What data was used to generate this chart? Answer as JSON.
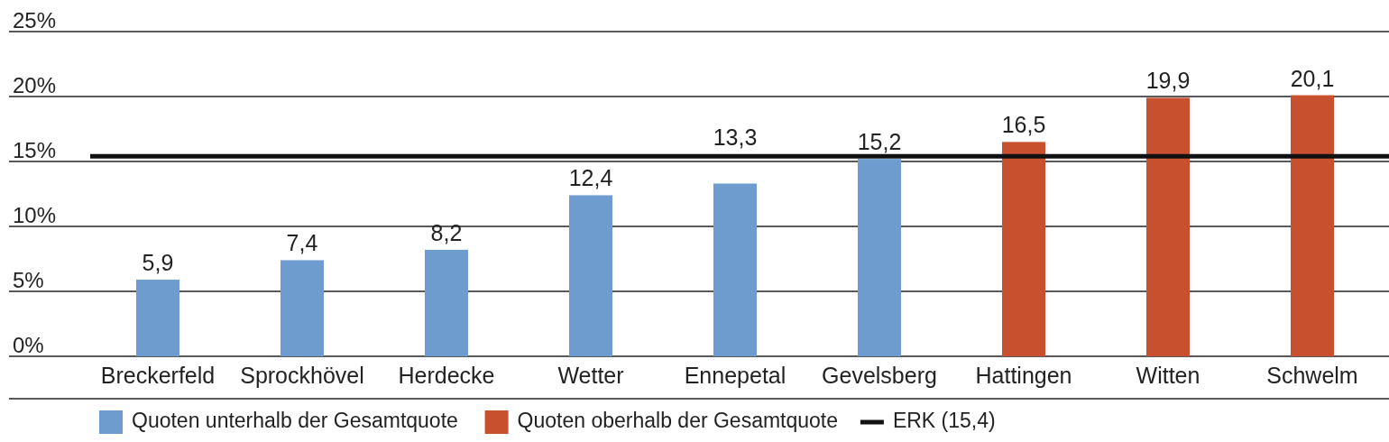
{
  "chart_data": {
    "type": "bar",
    "stacked": true,
    "categories": [
      "Breckerfeld",
      "Sprockhövel",
      "Herdecke",
      "Wetter",
      "Ennepetal",
      "Gevelsberg",
      "Hattingen",
      "Witten",
      "Schwelm"
    ],
    "series": [
      {
        "name": "Quoten unterhalb der Gesamtquote",
        "color": "#6f9ccf",
        "values": [
          5.9,
          7.4,
          8.2,
          12.4,
          13.3,
          15.2,
          null,
          null,
          null
        ],
        "value_labels": [
          "5,9",
          "7,4",
          "8,2",
          "12,4",
          "13,3",
          "15,2",
          null,
          null,
          null
        ]
      },
      {
        "name": "Quoten oberhalb der Gesamtquote",
        "color": "#c9502e",
        "values": [
          null,
          null,
          null,
          null,
          null,
          null,
          16.5,
          19.9,
          20.1
        ],
        "value_labels": [
          null,
          null,
          null,
          null,
          null,
          null,
          "16,5",
          "19,9",
          "20,1"
        ]
      }
    ],
    "ylim": [
      0,
      25
    ],
    "yticks": [
      {
        "value": 0,
        "label": "0%"
      },
      {
        "value": 5,
        "label": "5%"
      },
      {
        "value": 10,
        "label": "10%"
      },
      {
        "value": 15,
        "label": "15%"
      },
      {
        "value": 20,
        "label": "20%"
      },
      {
        "value": 25,
        "label": "25%"
      }
    ],
    "grid": "y",
    "ref_lines": [
      {
        "axis": "y",
        "value": 15.4,
        "label": "ERK (15,4)",
        "color": "#111111"
      }
    ],
    "legend": "bottom"
  }
}
